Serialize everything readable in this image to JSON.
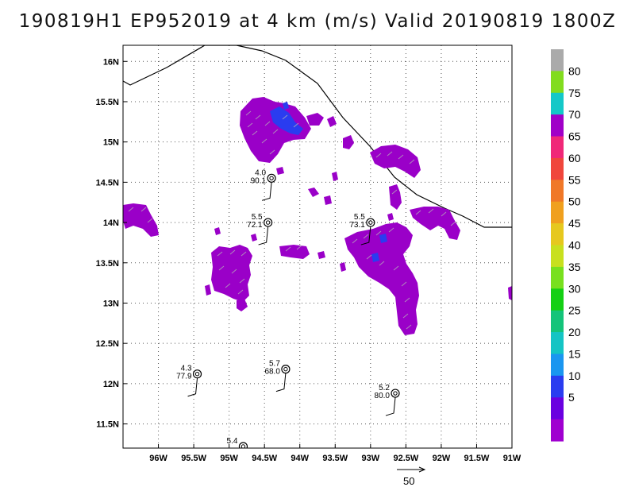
{
  "title": "190819H1  EP952019  at  4  km  (m/s)  Valid  20190819  1800Z",
  "x_ticks": [
    {
      "lon": -96.0,
      "label": "96W"
    },
    {
      "lon": -95.5,
      "label": "95.5W"
    },
    {
      "lon": -95.0,
      "label": "95W"
    },
    {
      "lon": -94.5,
      "label": "94.5W"
    },
    {
      "lon": -94.0,
      "label": "94W"
    },
    {
      "lon": -93.5,
      "label": "93.5W"
    },
    {
      "lon": -93.0,
      "label": "93W"
    },
    {
      "lon": -92.5,
      "label": "92.5W"
    },
    {
      "lon": -92.0,
      "label": "92W"
    },
    {
      "lon": -91.5,
      "label": "91.5W"
    },
    {
      "lon": -91.0,
      "label": "91W"
    }
  ],
  "y_ticks": [
    {
      "lat": 16.0,
      "label": "16N"
    },
    {
      "lat": 15.5,
      "label": "15.5N"
    },
    {
      "lat": 15.0,
      "label": "15N"
    },
    {
      "lat": 14.5,
      "label": "14.5N"
    },
    {
      "lat": 14.0,
      "label": "14N"
    },
    {
      "lat": 13.5,
      "label": "13.5N"
    },
    {
      "lat": 13.0,
      "label": "13N"
    },
    {
      "lat": 12.5,
      "label": "12.5N"
    },
    {
      "lat": 12.0,
      "label": "12N"
    },
    {
      "lat": 11.5,
      "label": "11.5N"
    }
  ],
  "colorbar": {
    "labels": [
      "5",
      "10",
      "15",
      "20",
      "25",
      "30",
      "35",
      "40",
      "45",
      "50",
      "55",
      "60",
      "65",
      "70",
      "75",
      "80"
    ],
    "colors": [
      "#a000d0",
      "#6a00e0",
      "#2a3cf0",
      "#1a96f0",
      "#14c4c4",
      "#14c47a",
      "#14d014",
      "#78e01e",
      "#c8e01e",
      "#e6c81e",
      "#f0a01e",
      "#f07828",
      "#f0463c",
      "#f02878",
      "#a000c8",
      "#14c8c8",
      "#82dc1e",
      "#aaaaaa"
    ]
  },
  "observations": [
    {
      "lon": -94.4,
      "lat": 14.55,
      "speed": "4.0",
      "pressure": "90.1"
    },
    {
      "lon": -94.45,
      "lat": 14.0,
      "speed": "5.5",
      "pressure": "72.1"
    },
    {
      "lon": -93.0,
      "lat": 14.0,
      "speed": "5.5",
      "pressure": "73.1"
    },
    {
      "lon": -95.45,
      "lat": 12.12,
      "speed": "4.3",
      "pressure": "77.9"
    },
    {
      "lon": -94.2,
      "lat": 12.18,
      "speed": "5.7",
      "pressure": "68.0"
    },
    {
      "lon": -92.65,
      "lat": 11.88,
      "speed": "5.2",
      "pressure": "80.0"
    },
    {
      "lon": -94.8,
      "lat": 11.22,
      "speed": "5.4",
      "pressure": ""
    }
  ],
  "reference_vector": {
    "label": "50"
  },
  "icons": {
    "observation": "dropsonde-circle-icon",
    "reference": "arrow-right-icon"
  }
}
